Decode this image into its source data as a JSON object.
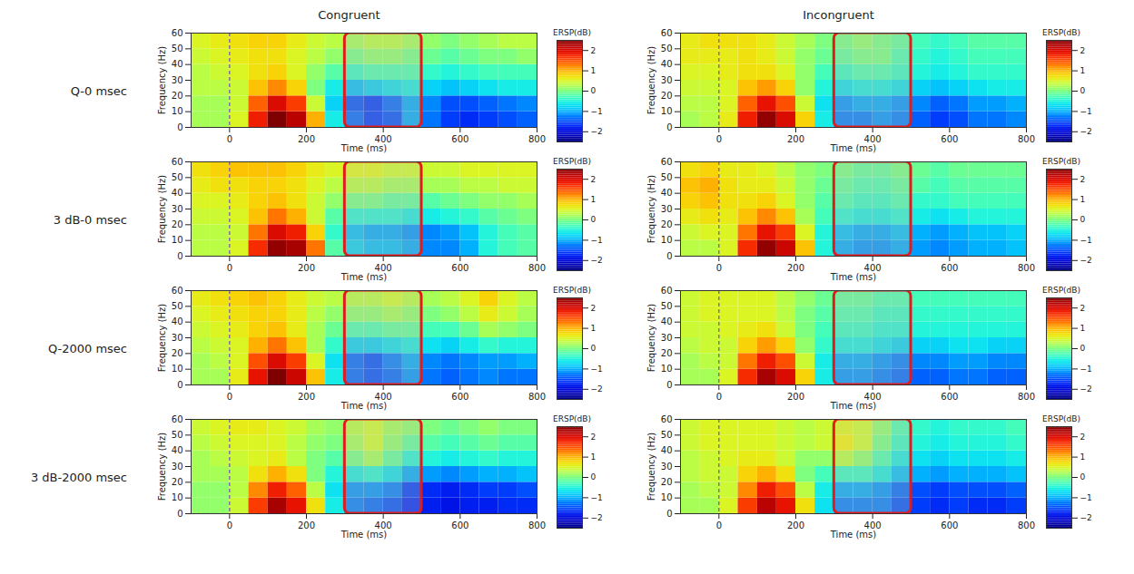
{
  "chart_data": {
    "type": "heatmap",
    "columns": [
      "Congruent",
      "Incongruent"
    ],
    "rows": [
      "Q-0 msec",
      "3 dB-0 msec",
      "Q-2000 msec",
      "3 dB-2000 msec"
    ],
    "x_label": "Time (ms)",
    "y_label": "Frequency (Hz)",
    "xlim": [
      -100,
      800
    ],
    "xticks": [
      0,
      200,
      400,
      600,
      800
    ],
    "ylim": [
      0,
      60
    ],
    "yticks": [
      0,
      10,
      20,
      30,
      40,
      50,
      60
    ],
    "time_bins": [
      -100,
      -50,
      0,
      50,
      100,
      150,
      200,
      250,
      300,
      350,
      400,
      450,
      500,
      550,
      600,
      650,
      700,
      750,
      800
    ],
    "frequency_bins": [
      0,
      10,
      20,
      30,
      40,
      50,
      60
    ],
    "colorbar_label": "ERSP(dB)",
    "colorbar_range": [
      -2.5,
      2.5
    ],
    "colorbar_ticks": [
      -2,
      -1,
      0,
      1,
      2
    ],
    "event_time": 0,
    "highlight_window": [
      300,
      500
    ],
    "panels": [
      {
        "row": "Q-0 msec",
        "column": "Congruent",
        "cells": [
          [
            0.2,
            0.2,
            0.5,
            1.8,
            2.5,
            2.2,
            1.0,
            -0.6,
            -1.3,
            -1.5,
            -1.4,
            -1.0,
            -1.3,
            -1.6,
            -1.7,
            -1.6,
            -1.5,
            -1.4
          ],
          [
            0.2,
            0.2,
            0.4,
            1.4,
            2.0,
            1.6,
            0.4,
            -0.8,
            -1.4,
            -1.5,
            -1.3,
            -1.0,
            -1.2,
            -1.5,
            -1.5,
            -1.4,
            -1.3,
            -1.2
          ],
          [
            0.3,
            0.3,
            0.4,
            0.9,
            1.2,
            0.8,
            0.0,
            -0.6,
            -0.9,
            -0.8,
            -0.7,
            -0.6,
            -0.8,
            -0.9,
            -0.8,
            -0.7,
            -0.6,
            -0.6
          ],
          [
            0.3,
            0.4,
            0.5,
            0.7,
            0.8,
            0.5,
            0.1,
            -0.2,
            -0.4,
            -0.3,
            -0.3,
            -0.3,
            -0.4,
            -0.5,
            -0.4,
            -0.3,
            -0.3,
            -0.3
          ],
          [
            0.4,
            0.5,
            0.6,
            0.7,
            0.7,
            0.5,
            0.3,
            0.1,
            -0.1,
            0.0,
            0.0,
            -0.1,
            -0.1,
            -0.2,
            -0.1,
            0.0,
            0.0,
            0.1
          ],
          [
            0.5,
            0.6,
            0.7,
            0.8,
            0.8,
            0.6,
            0.4,
            0.3,
            0.1,
            0.2,
            0.2,
            0.1,
            0.1,
            0.0,
            0.1,
            0.2,
            0.3,
            0.3
          ]
        ]
      },
      {
        "row": "Q-0 msec",
        "column": "Incongruent",
        "cells": [
          [
            0.2,
            0.3,
            0.6,
            1.8,
            2.4,
            2.0,
            0.8,
            -0.6,
            -1.2,
            -1.2,
            -1.1,
            -1.2,
            -1.4,
            -1.6,
            -1.5,
            -1.3,
            -1.3,
            -1.2
          ],
          [
            0.3,
            0.3,
            0.5,
            1.4,
            1.9,
            1.5,
            0.4,
            -0.7,
            -1.1,
            -1.0,
            -1.0,
            -1.1,
            -1.2,
            -1.4,
            -1.3,
            -1.1,
            -1.1,
            -1.0
          ],
          [
            0.4,
            0.4,
            0.5,
            0.9,
            1.1,
            0.8,
            0.1,
            -0.5,
            -0.7,
            -0.6,
            -0.6,
            -0.7,
            -0.8,
            -0.9,
            -0.8,
            -0.7,
            -0.6,
            -0.6
          ],
          [
            0.5,
            0.5,
            0.6,
            0.7,
            0.7,
            0.5,
            0.1,
            -0.3,
            -0.4,
            -0.3,
            -0.3,
            -0.4,
            -0.5,
            -0.6,
            -0.5,
            -0.4,
            -0.4,
            -0.4
          ],
          [
            0.6,
            0.6,
            0.6,
            0.7,
            0.6,
            0.4,
            0.1,
            -0.1,
            -0.2,
            -0.1,
            -0.1,
            -0.3,
            -0.4,
            -0.5,
            -0.4,
            -0.3,
            -0.3,
            -0.3
          ],
          [
            0.6,
            0.7,
            0.7,
            0.7,
            0.6,
            0.4,
            0.2,
            0.0,
            -0.1,
            0.0,
            -0.1,
            -0.2,
            -0.3,
            -0.4,
            -0.3,
            -0.2,
            -0.2,
            -0.2
          ]
        ]
      },
      {
        "row": "3 dB-0 msec",
        "column": "Congruent",
        "cells": [
          [
            0.3,
            0.3,
            0.5,
            1.7,
            2.4,
            2.3,
            1.3,
            -0.2,
            -0.8,
            -0.9,
            -0.9,
            -1.0,
            -1.2,
            -1.2,
            -1.0,
            -0.5,
            -0.3,
            -0.2
          ],
          [
            0.3,
            0.3,
            0.4,
            1.3,
            2.0,
            1.8,
            0.8,
            -0.4,
            -0.9,
            -1.0,
            -1.0,
            -1.1,
            -1.2,
            -1.1,
            -0.9,
            -0.5,
            -0.3,
            -0.2
          ],
          [
            0.4,
            0.4,
            0.5,
            0.9,
            1.3,
            1.0,
            0.4,
            -0.2,
            -0.5,
            -0.5,
            -0.5,
            -0.6,
            -0.6,
            -0.5,
            -0.4,
            -0.2,
            -0.1,
            0.0
          ],
          [
            0.5,
            0.5,
            0.6,
            0.8,
            0.9,
            0.7,
            0.4,
            0.1,
            -0.1,
            -0.1,
            -0.2,
            -0.2,
            -0.2,
            -0.1,
            0.0,
            0.1,
            0.1,
            0.2
          ],
          [
            0.6,
            0.7,
            0.7,
            0.8,
            0.8,
            0.7,
            0.5,
            0.3,
            0.2,
            0.2,
            0.1,
            0.1,
            0.2,
            0.2,
            0.3,
            0.3,
            0.4,
            0.4
          ],
          [
            0.7,
            0.8,
            0.9,
            0.9,
            0.9,
            0.8,
            0.6,
            0.5,
            0.4,
            0.4,
            0.3,
            0.3,
            0.4,
            0.4,
            0.5,
            0.5,
            0.5,
            0.5
          ]
        ]
      },
      {
        "row": "3 dB-0 msec",
        "column": "Incongruent",
        "cells": [
          [
            0.3,
            0.3,
            0.5,
            1.7,
            2.4,
            2.1,
            0.9,
            -0.5,
            -1.0,
            -1.1,
            -1.1,
            -1.0,
            -1.1,
            -1.2,
            -1.1,
            -1.0,
            -1.0,
            -0.9
          ],
          [
            0.4,
            0.5,
            0.5,
            1.3,
            1.9,
            1.6,
            0.5,
            -0.5,
            -0.9,
            -1.0,
            -1.0,
            -0.9,
            -1.0,
            -1.1,
            -1.0,
            -0.9,
            -0.9,
            -0.8
          ],
          [
            0.6,
            0.7,
            0.6,
            0.9,
            1.2,
            0.9,
            0.2,
            -0.3,
            -0.5,
            -0.6,
            -0.6,
            -0.5,
            -0.6,
            -0.7,
            -0.6,
            -0.5,
            -0.5,
            -0.5
          ],
          [
            0.8,
            0.9,
            0.7,
            0.7,
            0.8,
            0.5,
            0.1,
            -0.2,
            -0.3,
            -0.4,
            -0.4,
            -0.3,
            -0.4,
            -0.4,
            -0.3,
            -0.3,
            -0.3,
            -0.3
          ],
          [
            0.9,
            1.0,
            0.7,
            0.6,
            0.6,
            0.4,
            0.1,
            -0.1,
            -0.2,
            -0.3,
            -0.3,
            -0.2,
            -0.2,
            -0.3,
            -0.2,
            -0.2,
            -0.2,
            -0.2
          ],
          [
            0.7,
            0.8,
            0.6,
            0.6,
            0.5,
            0.3,
            0.1,
            0.0,
            -0.1,
            -0.2,
            -0.2,
            -0.1,
            -0.1,
            -0.2,
            -0.1,
            -0.1,
            -0.1,
            -0.1
          ]
        ]
      },
      {
        "row": "Q-2000 msec",
        "column": "Congruent",
        "cells": [
          [
            0.2,
            0.2,
            0.6,
            1.9,
            2.5,
            2.1,
            0.9,
            -0.6,
            -1.3,
            -1.4,
            -1.3,
            -1.1,
            -1.3,
            -1.4,
            -1.3,
            -1.2,
            -1.3,
            -1.3
          ],
          [
            0.2,
            0.3,
            0.5,
            1.5,
            2.0,
            1.6,
            0.5,
            -0.7,
            -1.3,
            -1.4,
            -1.2,
            -1.0,
            -1.2,
            -1.3,
            -1.2,
            -1.1,
            -1.1,
            -1.0
          ],
          [
            0.3,
            0.4,
            0.5,
            1.0,
            1.3,
            0.9,
            0.2,
            -0.4,
            -0.8,
            -0.8,
            -0.7,
            -0.6,
            -0.7,
            -0.8,
            -0.6,
            -0.4,
            -0.5,
            -0.5
          ],
          [
            0.4,
            0.5,
            0.6,
            0.8,
            0.9,
            0.6,
            0.2,
            -0.1,
            -0.3,
            -0.3,
            -0.2,
            -0.2,
            -0.3,
            -0.3,
            -0.1,
            0.2,
            0.1,
            0.0
          ],
          [
            0.5,
            0.6,
            0.7,
            0.8,
            0.8,
            0.6,
            0.3,
            0.1,
            0.0,
            0.0,
            0.1,
            0.0,
            0.0,
            0.1,
            0.3,
            0.6,
            0.4,
            0.2
          ],
          [
            0.6,
            0.7,
            0.8,
            0.9,
            0.8,
            0.6,
            0.4,
            0.3,
            0.2,
            0.2,
            0.3,
            0.2,
            0.2,
            0.3,
            0.5,
            0.8,
            0.5,
            0.3
          ]
        ]
      },
      {
        "row": "Q-2000 msec",
        "column": "Incongruent",
        "cells": [
          [
            0.2,
            0.2,
            0.5,
            1.7,
            2.3,
            2.0,
            0.8,
            -0.6,
            -1.1,
            -1.1,
            -1.2,
            -1.3,
            -1.4,
            -1.4,
            -1.3,
            -1.3,
            -1.4,
            -1.4
          ],
          [
            0.2,
            0.3,
            0.4,
            1.3,
            1.8,
            1.5,
            0.4,
            -0.6,
            -1.0,
            -1.0,
            -1.1,
            -1.2,
            -1.2,
            -1.2,
            -1.1,
            -1.1,
            -1.2,
            -1.2
          ],
          [
            0.3,
            0.4,
            0.4,
            0.8,
            1.1,
            0.8,
            0.1,
            -0.4,
            -0.6,
            -0.6,
            -0.7,
            -0.8,
            -0.8,
            -0.8,
            -0.7,
            -0.7,
            -0.8,
            -0.8
          ],
          [
            0.4,
            0.4,
            0.5,
            0.6,
            0.7,
            0.4,
            0.0,
            -0.3,
            -0.4,
            -0.4,
            -0.5,
            -0.5,
            -0.5,
            -0.5,
            -0.5,
            -0.5,
            -0.5,
            -0.5
          ],
          [
            0.4,
            0.5,
            0.5,
            0.5,
            0.5,
            0.3,
            0.0,
            -0.2,
            -0.3,
            -0.3,
            -0.4,
            -0.4,
            -0.4,
            -0.4,
            -0.4,
            -0.4,
            -0.4,
            -0.4
          ],
          [
            0.4,
            0.5,
            0.5,
            0.5,
            0.5,
            0.3,
            0.1,
            -0.1,
            -0.2,
            -0.2,
            -0.3,
            -0.3,
            -0.3,
            -0.3,
            -0.3,
            -0.3,
            -0.3,
            -0.3
          ]
        ]
      },
      {
        "row": "3 dB-2000 msec",
        "column": "Congruent",
        "cells": [
          [
            0.1,
            0.1,
            0.4,
            1.6,
            2.3,
            1.9,
            0.7,
            -0.6,
            -1.2,
            -1.3,
            -1.4,
            -1.6,
            -1.8,
            -1.9,
            -1.8,
            -1.8,
            -1.7,
            -1.7
          ],
          [
            0.1,
            0.1,
            0.3,
            1.2,
            1.8,
            1.4,
            0.3,
            -0.7,
            -1.1,
            -1.1,
            -1.2,
            -1.5,
            -1.7,
            -1.8,
            -1.7,
            -1.6,
            -1.6,
            -1.5
          ],
          [
            0.2,
            0.2,
            0.3,
            0.7,
            1.0,
            0.7,
            0.0,
            -0.5,
            -0.6,
            -0.5,
            -0.7,
            -1.0,
            -1.1,
            -1.2,
            -1.1,
            -1.0,
            -1.0,
            -0.9
          ],
          [
            0.2,
            0.3,
            0.4,
            0.5,
            0.6,
            0.3,
            0.0,
            -0.2,
            -0.1,
            0.1,
            -0.2,
            -0.5,
            -0.5,
            -0.6,
            -0.5,
            -0.4,
            -0.5,
            -0.5
          ],
          [
            0.3,
            0.4,
            0.5,
            0.5,
            0.5,
            0.3,
            0.1,
            0.0,
            0.1,
            0.3,
            0.0,
            -0.2,
            -0.2,
            -0.3,
            -0.2,
            -0.1,
            -0.2,
            -0.2
          ],
          [
            0.4,
            0.5,
            0.6,
            0.6,
            0.5,
            0.4,
            0.2,
            0.1,
            0.2,
            0.3,
            0.1,
            0.0,
            0.0,
            -0.1,
            0.0,
            0.1,
            0.0,
            0.0
          ]
        ]
      },
      {
        "row": "3 dB-2000 msec",
        "column": "Incongruent",
        "cells": [
          [
            0.2,
            0.2,
            0.5,
            1.6,
            2.2,
            1.9,
            0.7,
            -0.7,
            -1.2,
            -1.2,
            -1.2,
            -1.4,
            -1.6,
            -1.7,
            -1.6,
            -1.7,
            -1.7,
            -1.6
          ],
          [
            0.2,
            0.3,
            0.4,
            1.2,
            1.8,
            1.5,
            0.3,
            -0.6,
            -1.0,
            -1.0,
            -1.1,
            -1.3,
            -1.5,
            -1.6,
            -1.5,
            -1.5,
            -1.5,
            -1.4
          ],
          [
            0.3,
            0.4,
            0.4,
            0.8,
            1.0,
            0.7,
            0.0,
            -0.3,
            -0.4,
            -0.4,
            -0.6,
            -0.9,
            -1.0,
            -1.1,
            -1.0,
            -1.0,
            -1.0,
            -0.9
          ],
          [
            0.3,
            0.4,
            0.5,
            0.6,
            0.6,
            0.4,
            0.1,
            0.1,
            0.2,
            0.0,
            -0.3,
            -0.6,
            -0.7,
            -0.8,
            -0.7,
            -0.7,
            -0.7,
            -0.6
          ],
          [
            0.4,
            0.5,
            0.5,
            0.5,
            0.5,
            0.4,
            0.3,
            0.4,
            0.5,
            0.3,
            -0.1,
            -0.4,
            -0.5,
            -0.6,
            -0.5,
            -0.5,
            -0.5,
            -0.4
          ],
          [
            0.4,
            0.5,
            0.5,
            0.5,
            0.5,
            0.4,
            0.3,
            0.4,
            0.4,
            0.3,
            0.0,
            -0.3,
            -0.4,
            -0.5,
            -0.4,
            -0.4,
            -0.4,
            -0.3
          ]
        ]
      }
    ]
  }
}
